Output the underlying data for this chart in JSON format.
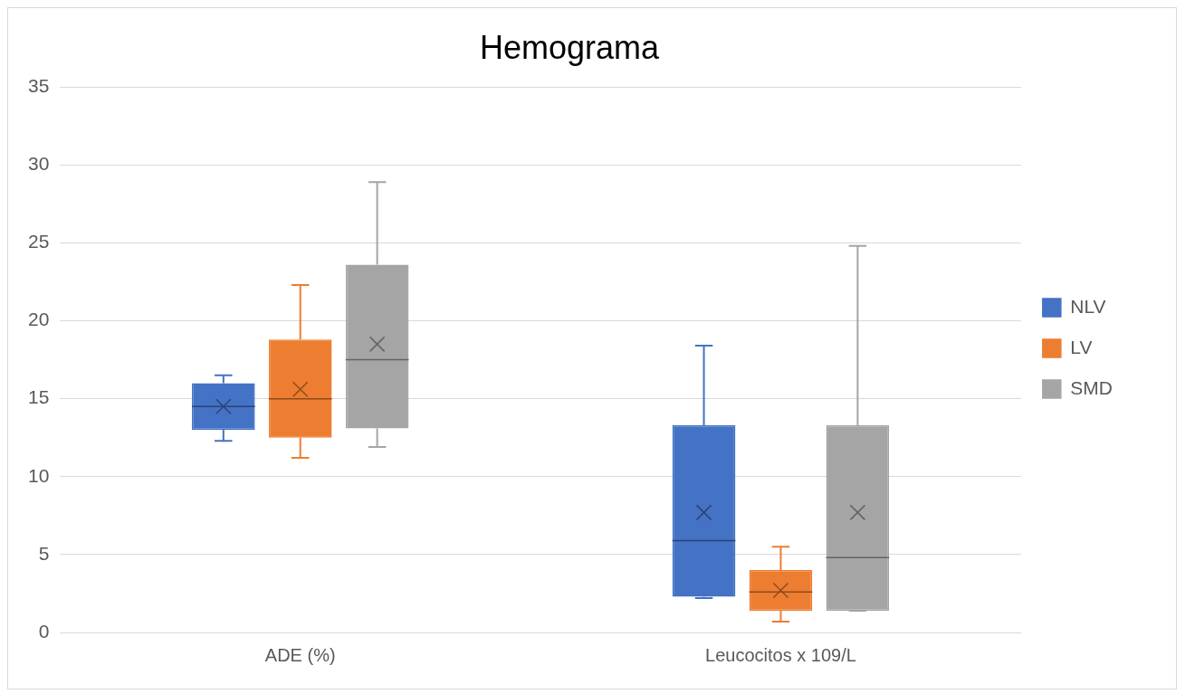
{
  "chart_data": {
    "type": "box",
    "title": "Hemograma",
    "categories": [
      "ADE (%)",
      "Leucocitos x 109/L"
    ],
    "series": [
      {
        "name": "NLV",
        "color": "#4472c4",
        "boxes": [
          {
            "low": 12.3,
            "q1": 13.0,
            "median": 14.5,
            "q3": 16.0,
            "high": 16.5,
            "mean": 14.5
          },
          {
            "low": 2.2,
            "q1": 2.3,
            "median": 5.9,
            "q3": 13.3,
            "high": 18.4,
            "mean": 7.7
          }
        ]
      },
      {
        "name": "LV",
        "color": "#ed7d31",
        "boxes": [
          {
            "low": 11.2,
            "q1": 12.5,
            "median": 15.0,
            "q3": 18.8,
            "high": 22.3,
            "mean": 15.6
          },
          {
            "low": 0.7,
            "q1": 1.4,
            "median": 2.6,
            "q3": 4.0,
            "high": 5.5,
            "mean": 2.7
          }
        ]
      },
      {
        "name": "SMD",
        "color": "#a5a5a5",
        "boxes": [
          {
            "low": 11.9,
            "q1": 13.1,
            "median": 17.5,
            "q3": 23.6,
            "high": 28.9,
            "mean": 18.5
          },
          {
            "low": 1.4,
            "q1": 1.4,
            "median": 4.8,
            "q3": 13.3,
            "high": 24.8,
            "mean": 7.7
          }
        ]
      }
    ],
    "ylim": [
      0,
      35
    ],
    "yticks": [
      0,
      5,
      10,
      15,
      20,
      25,
      30,
      35
    ],
    "grid": "y",
    "legend": "right"
  }
}
